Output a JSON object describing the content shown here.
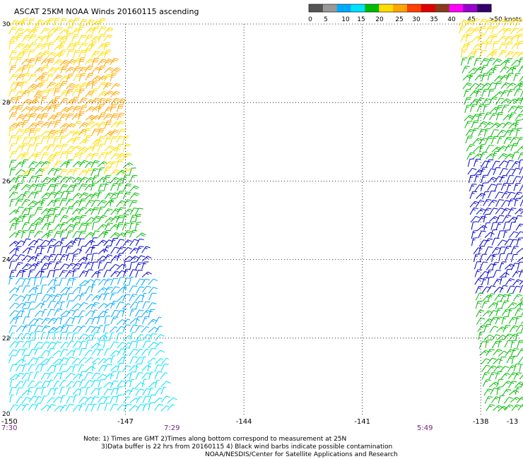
{
  "title": "ASCAT 25KM NOAA Winds 20160115 ascending",
  "colorbar": {
    "colors": [
      "#555555",
      "#999999",
      "#00aaff",
      "#00e0ff",
      "#00bb00",
      "#ffdd00",
      "#ffa500",
      "#ff4000",
      "#e00000",
      "#8b3a1a",
      "#ff00ff",
      "#9900cc",
      "#33006a"
    ],
    "labels": [
      "0",
      "5",
      "10",
      "15",
      "20",
      "25",
      "30",
      "35",
      "40",
      "45",
      ">50 knots"
    ]
  },
  "chart_data": {
    "type": "scatter",
    "title": "ASCAT 25KM NOAA Winds 20160115 ascending",
    "xlabel": "",
    "ylabel": "",
    "xlim": [
      -150,
      -137
    ],
    "ylim": [
      20,
      30
    ],
    "x_ticks": [
      "-150",
      "-147",
      "-144",
      "-141",
      "-138",
      "-13"
    ],
    "y_ticks": [
      "20",
      "22",
      "24",
      "26",
      "28",
      "30"
    ],
    "grid": "dotted",
    "swath_times": [
      {
        "label": "7:30",
        "lon": -150
      },
      {
        "label": "7:29",
        "lon": -146
      },
      {
        "label": "5:49",
        "lon": -137.5
      }
    ],
    "series": [
      {
        "swath": "west",
        "bands": [
          {
            "lat_range": [
              28.0,
              30.0
            ],
            "speed_knots": 24,
            "color": "#ffdd00"
          },
          {
            "lat_range": [
              27.0,
              29.0
            ],
            "speed_knots": 28,
            "color": "#ffa500"
          },
          {
            "lat_range": [
              26.0,
              27.5
            ],
            "speed_knots": 22,
            "color": "#ffdd00"
          },
          {
            "lat_range": [
              24.5,
              26.5
            ],
            "speed_knots": 18,
            "color": "#00bb00"
          },
          {
            "lat_range": [
              23.5,
              24.5
            ],
            "speed_knots": 15,
            "color": "#0000cc"
          },
          {
            "lat_range": [
              22.0,
              23.5
            ],
            "speed_knots": 12,
            "color": "#00aaff"
          },
          {
            "lat_range": [
              20.0,
              22.0
            ],
            "speed_knots": 10,
            "color": "#00e0ff"
          }
        ]
      },
      {
        "swath": "east",
        "bands": [
          {
            "lat_range": [
              29.0,
              30.0
            ],
            "speed_knots": 22,
            "color": "#ffdd00"
          },
          {
            "lat_range": [
              26.5,
              29.0
            ],
            "speed_knots": 18,
            "color": "#00bb00"
          },
          {
            "lat_range": [
              23.0,
              26.5
            ],
            "speed_knots": 14,
            "color": "#0000cc"
          },
          {
            "lat_range": [
              20.0,
              23.0
            ],
            "speed_knots": 16,
            "color": "#00bb00"
          }
        ]
      }
    ]
  },
  "notes": {
    "line1": "Note: 1) Times are GMT 2)Times along bottom correspond to measurement at 25N",
    "line2": "3)Data buffer is 22 hrs from 20160115 4) Black wind barbs indicate possible contamination",
    "line3": "NOAA/NESDIS/Center for Satellite Applications and Research"
  }
}
